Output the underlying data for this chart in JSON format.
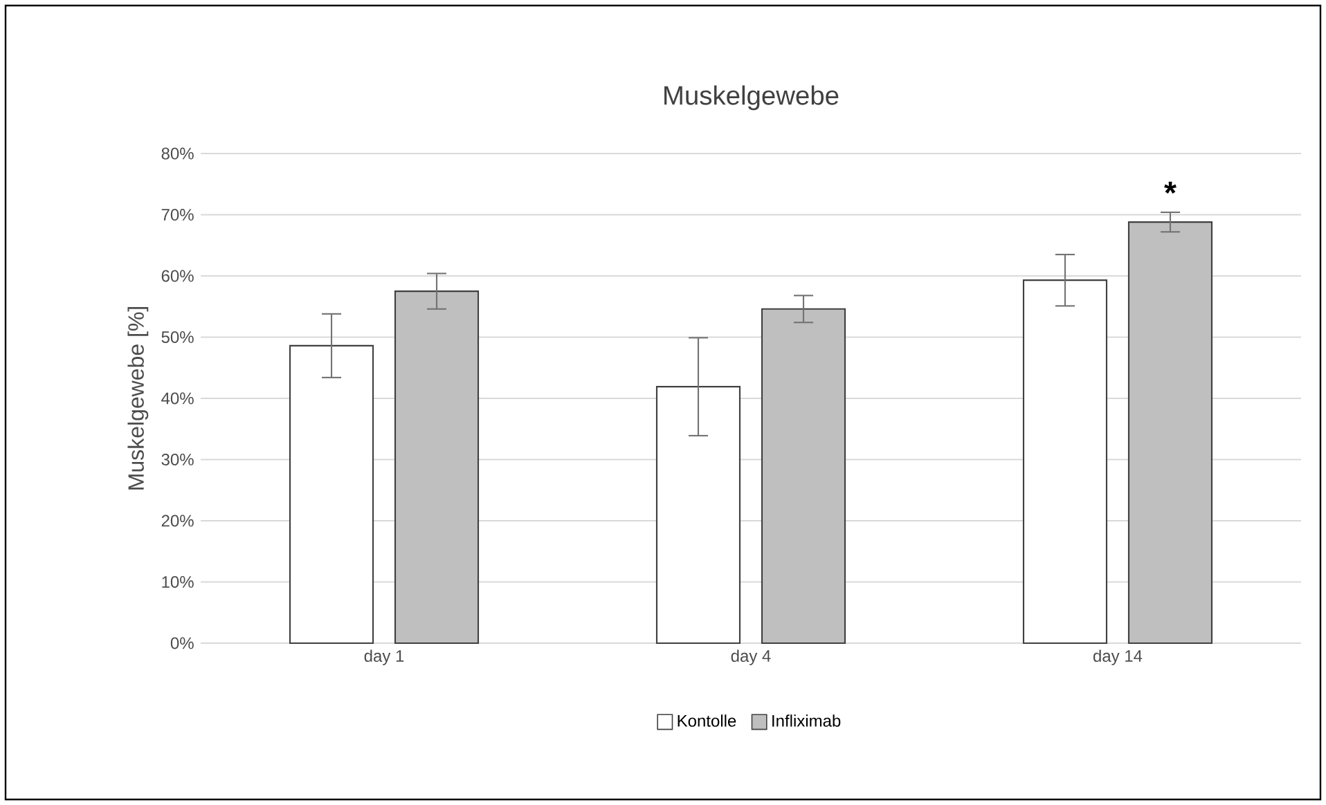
{
  "chart_data": {
    "type": "bar",
    "title": "Muskelgewebe",
    "ylabel": "Muskelgewebe [%]",
    "categories": [
      "day 1",
      "day 4",
      "day 14"
    ],
    "series": [
      {
        "name": "Kontolle",
        "color": "#ffffff",
        "values": [
          48.6,
          41.9,
          59.3
        ],
        "errors": [
          5.2,
          8.0,
          4.2
        ]
      },
      {
        "name": "Infliximab",
        "color": "#bfbfbf",
        "values": [
          57.5,
          54.6,
          68.8
        ],
        "errors": [
          2.9,
          2.2,
          1.6
        ]
      }
    ],
    "ylim": [
      0,
      80
    ],
    "yticks": [
      {
        "value": 0,
        "label": "0%"
      },
      {
        "value": 10,
        "label": "10%"
      },
      {
        "value": 20,
        "label": "20%"
      },
      {
        "value": 30,
        "label": "30%"
      },
      {
        "value": 40,
        "label": "40%"
      },
      {
        "value": 50,
        "label": "50%"
      },
      {
        "value": 60,
        "label": "60%"
      },
      {
        "value": 70,
        "label": "70%"
      },
      {
        "value": 80,
        "label": "80%"
      }
    ],
    "annotations": [
      "*"
    ],
    "grid": "y",
    "legend": "bottom"
  }
}
